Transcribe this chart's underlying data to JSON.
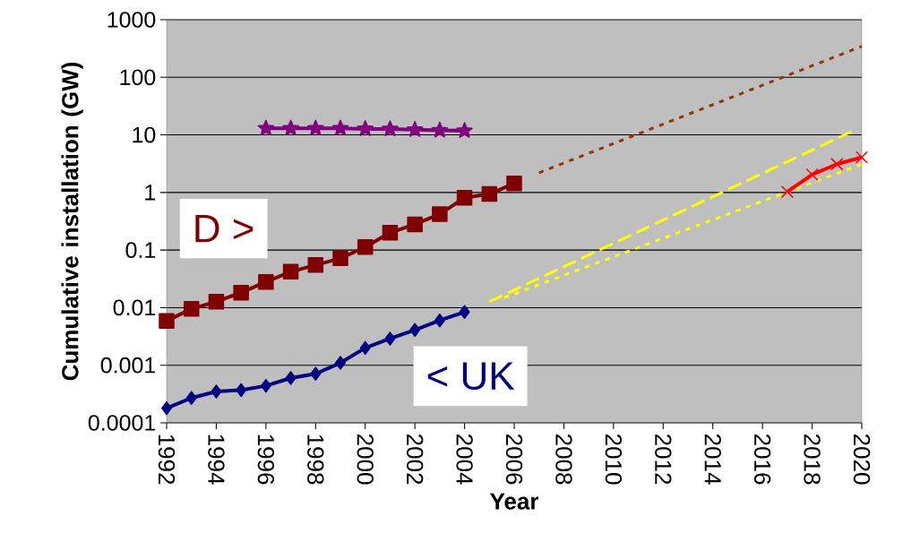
{
  "chart_data": {
    "type": "line",
    "xlabel": "Year",
    "ylabel": "Cumulative installation (GW)",
    "log": "y",
    "grid": "y",
    "xlim": [
      1992,
      2020
    ],
    "xticks": [
      1992,
      1994,
      1996,
      1998,
      2000,
      2002,
      2004,
      2006,
      2008,
      2010,
      2012,
      2014,
      2016,
      2018,
      2020
    ],
    "ylim": [
      0.0001,
      1000
    ],
    "yticks": [
      0.0001,
      0.001,
      0.01,
      0.1,
      1,
      10,
      100,
      1000
    ],
    "series": [
      {
        "name": "< UK",
        "color": "#000080",
        "marker": "diamond",
        "line_style": "solid",
        "x": [
          1992,
          1993,
          1994,
          1995,
          1996,
          1997,
          1998,
          1999,
          2000,
          2001,
          2002,
          2003,
          2004
        ],
        "values": [
          0.00018,
          0.00027,
          0.00035,
          0.00037,
          0.00044,
          0.0006,
          0.00071,
          0.0011,
          0.002,
          0.0029,
          0.0041,
          0.006,
          0.0084
        ]
      },
      {
        "name": "D >",
        "color": "#800000",
        "marker": "square",
        "line_style": "solid",
        "x": [
          1992,
          1993,
          1994,
          1995,
          1996,
          1997,
          1998,
          1999,
          2000,
          2001,
          2002,
          2003,
          2004,
          2005,
          2006
        ],
        "values": [
          0.0059,
          0.0095,
          0.0127,
          0.0182,
          0.028,
          0.042,
          0.055,
          0.072,
          0.113,
          0.2,
          0.28,
          0.42,
          0.81,
          0.94,
          1.43
        ]
      },
      {
        "color": "#800080",
        "marker": "star",
        "line_style": "solid",
        "x": [
          1996,
          1997,
          1998,
          1999,
          2000,
          2001,
          2002,
          2003,
          2004
        ],
        "values": [
          13,
          13,
          13,
          13,
          12.7,
          12.6,
          12.3,
          12,
          11.8
        ]
      },
      {
        "color": "#993300",
        "marker": "none",
        "line_style": "dotted",
        "x": [
          2007,
          2020
        ],
        "values": [
          2.2,
          345
        ]
      },
      {
        "color": "#ffff00",
        "marker": "none",
        "line_style": "dashed",
        "x": [
          2005,
          2019.6
        ],
        "values": [
          0.0127,
          11.5
        ]
      },
      {
        "color": "#ffff00",
        "marker": "none",
        "line_style": "dotted",
        "x": [
          2005.6,
          2020
        ],
        "values": [
          0.015,
          3.1
        ]
      },
      {
        "color": "#ff0000",
        "marker": "cross",
        "line_style": "solid",
        "x": [
          2017,
          2018,
          2019,
          2020
        ],
        "values": [
          1.03,
          2.04,
          3.1,
          4.07
        ]
      }
    ]
  }
}
